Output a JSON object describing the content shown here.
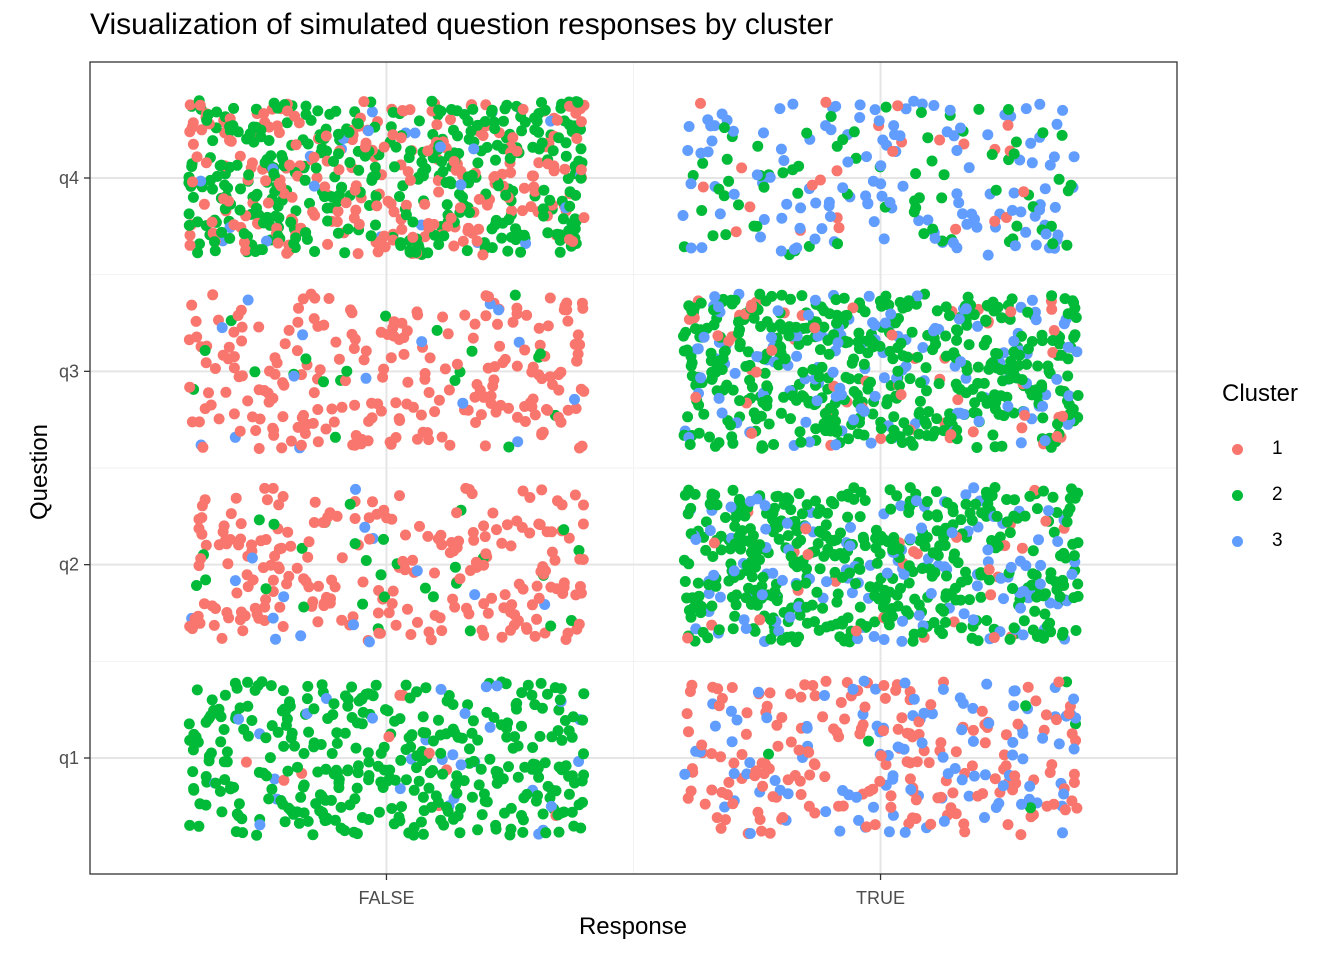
{
  "chart_data": {
    "type": "scatter",
    "title": "Visualization of simulated question responses by cluster",
    "xlabel": "Response",
    "ylabel": "Question",
    "x_categories": [
      "FALSE",
      "TRUE"
    ],
    "y_categories": [
      "q1",
      "q2",
      "q3",
      "q4"
    ],
    "jitter": {
      "x": 0.4,
      "y": 0.4
    },
    "grid": true,
    "legend": {
      "title": "Cluster",
      "position": "right",
      "entries": [
        {
          "name": "1",
          "color": "#F8766D"
        },
        {
          "name": "2",
          "color": "#00BA38"
        },
        {
          "name": "3",
          "color": "#619CFF"
        }
      ]
    },
    "groups": [
      {
        "question": "q1",
        "response": "FALSE",
        "counts": {
          "1": 10,
          "2": 360,
          "3": 30
        }
      },
      {
        "question": "q1",
        "response": "TRUE",
        "counts": {
          "1": 190,
          "2": 6,
          "3": 110
        }
      },
      {
        "question": "q2",
        "response": "FALSE",
        "counts": {
          "1": 235,
          "2": 30,
          "3": 15
        }
      },
      {
        "question": "q2",
        "response": "TRUE",
        "counts": {
          "1": 30,
          "2": 440,
          "3": 130
        }
      },
      {
        "question": "q3",
        "response": "FALSE",
        "counts": {
          "1": 235,
          "2": 20,
          "3": 15
        }
      },
      {
        "question": "q3",
        "response": "TRUE",
        "counts": {
          "1": 60,
          "2": 440,
          "3": 135
        }
      },
      {
        "question": "q4",
        "response": "FALSE",
        "counts": {
          "1": 250,
          "2": 380,
          "3": 25
        }
      },
      {
        "question": "q4",
        "response": "TRUE",
        "counts": {
          "1": 25,
          "2": 75,
          "3": 135
        }
      }
    ]
  }
}
